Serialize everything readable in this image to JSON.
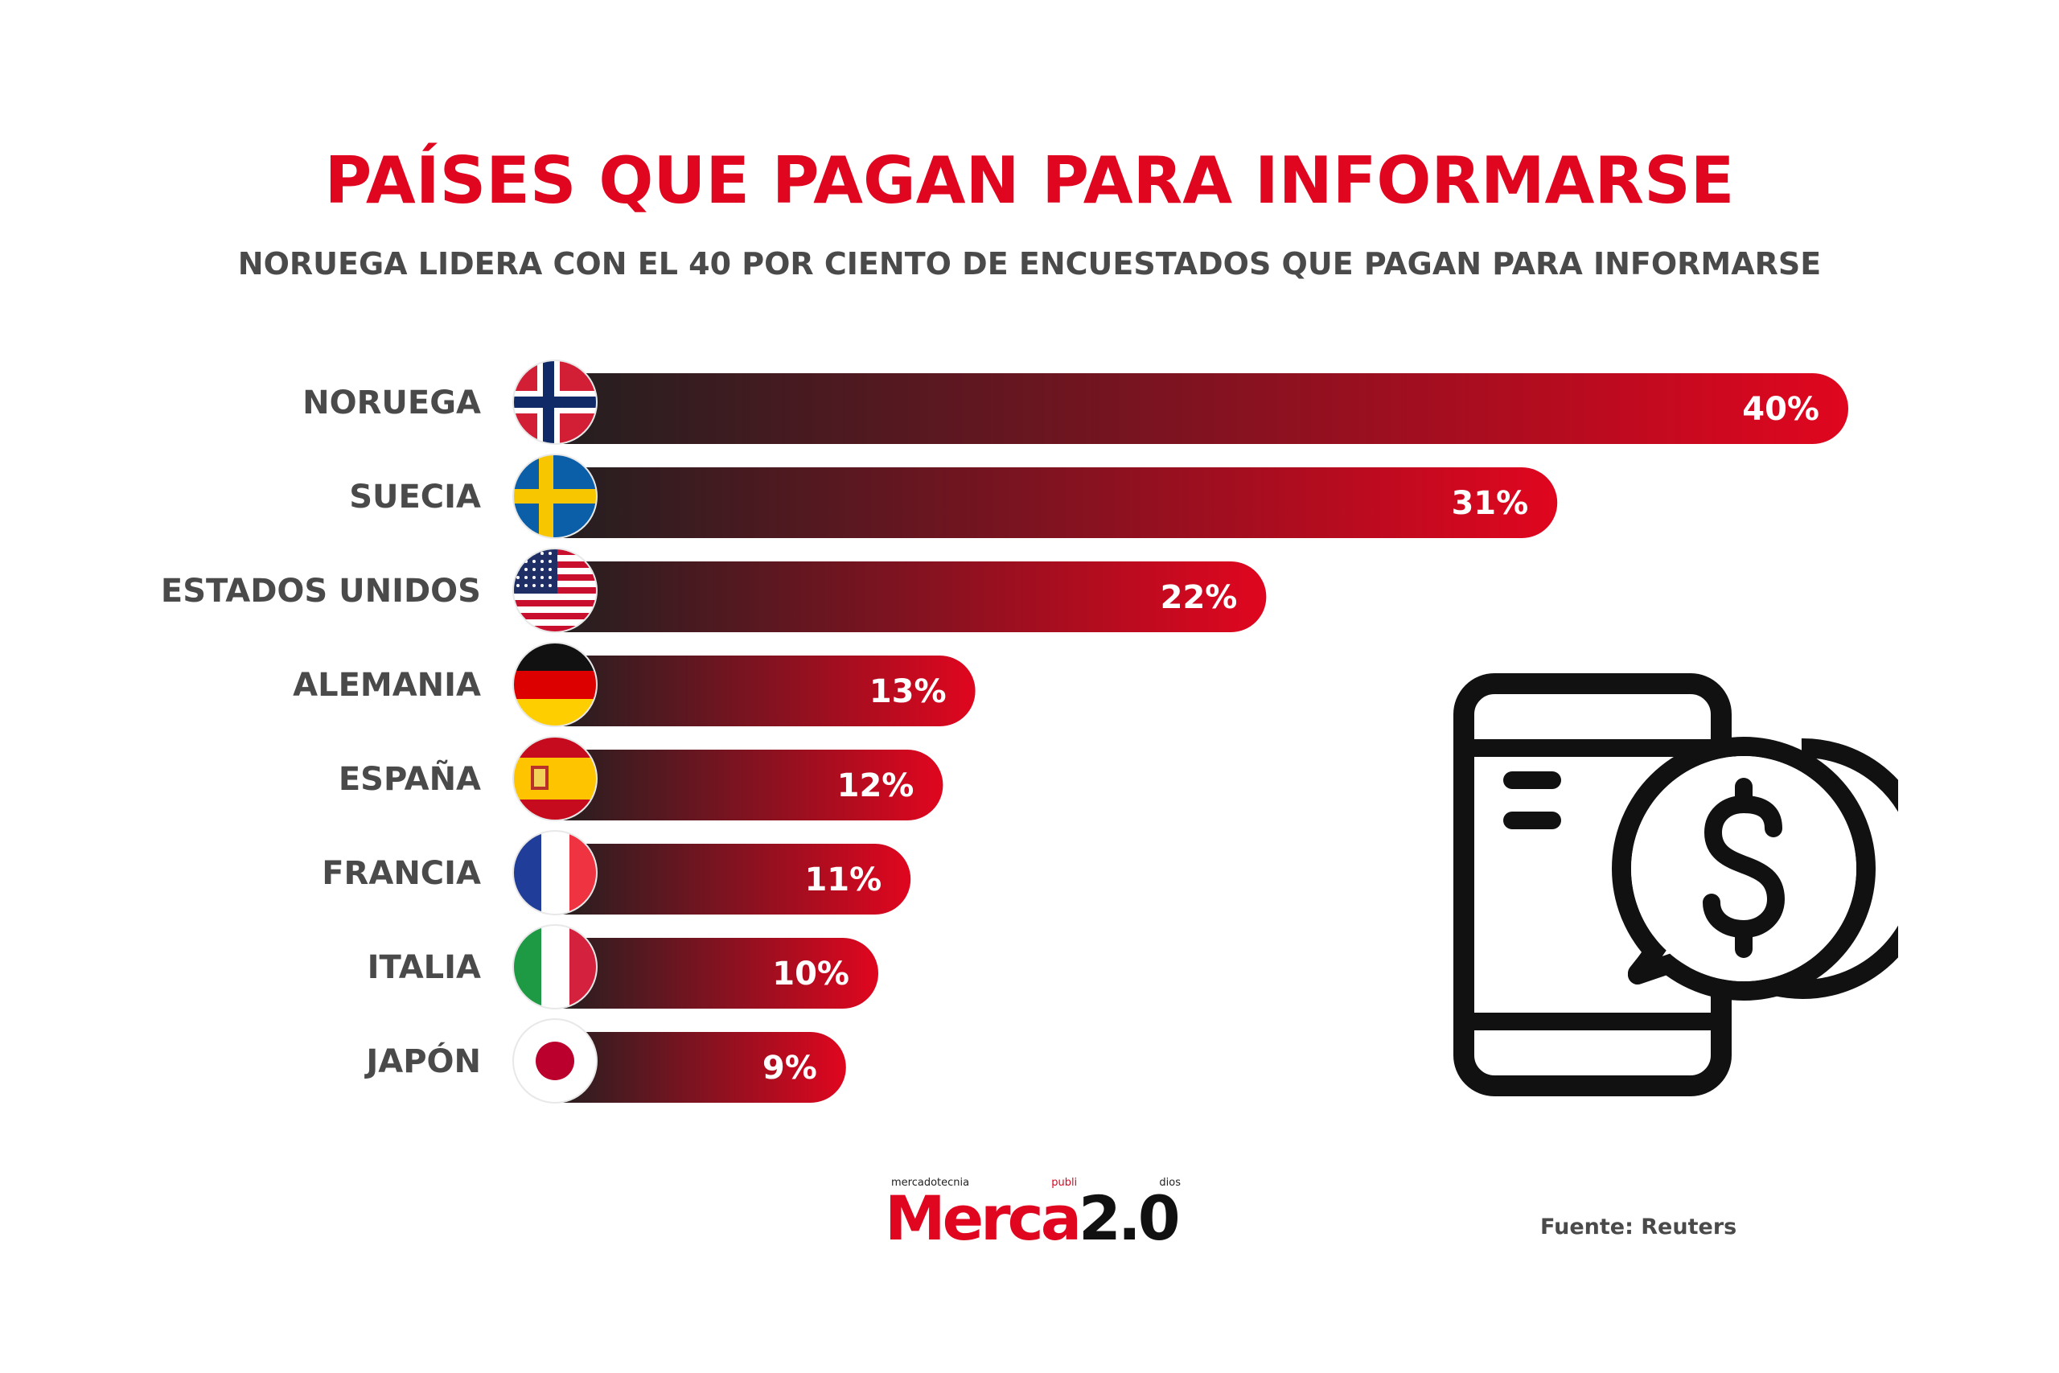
{
  "header": {
    "title": "PAÍSES QUE PAGAN PARA INFORMARSE",
    "subtitle": "NORUEGA LIDERA CON EL 40 POR CIENTO DE ENCUESTADOS QUE PAGAN PARA INFORMARSE"
  },
  "chart_data": {
    "type": "bar",
    "orientation": "horizontal",
    "title": "PAÍSES QUE PAGAN PARA INFORMARSE",
    "subtitle": "NORUEGA LIDERA CON EL 40 POR CIENTO DE ENCUESTADOS QUE PAGAN PARA INFORMARSE",
    "categories": [
      "NORUEGA",
      "SUECIA",
      "ESTADOS UNIDOS",
      "ALEMANIA",
      "ESPAÑA",
      "FRANCIA",
      "ITALIA",
      "JAPÓN"
    ],
    "values": [
      40,
      31,
      22,
      13,
      12,
      11,
      10,
      9
    ],
    "value_labels": [
      "40%",
      "31%",
      "22%",
      "13%",
      "12%",
      "11%",
      "10%",
      "9%"
    ],
    "flags": [
      "norway-flag",
      "sweden-flag",
      "usa-flag",
      "germany-flag",
      "spain-flag",
      "france-flag",
      "italy-flag",
      "japan-flag"
    ],
    "unit": "%",
    "grid": false,
    "bar_gradient": [
      "#231f20",
      "#e0061f"
    ]
  },
  "illustration": {
    "icon": "phone-dollar-icon"
  },
  "footer": {
    "logo_tagline_parts": [
      "mercadotecnia",
      "publi",
      "dios"
    ],
    "logo_merca": "Merca",
    "logo_version": "2.0",
    "source": "Fuente: Reuters"
  },
  "colors": {
    "accent": "#e0061f",
    "text_gray": "#4a4a4a",
    "dark": "#231f20"
  }
}
